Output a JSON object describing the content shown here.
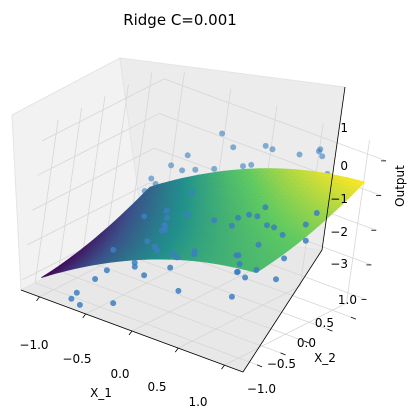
{
  "chart_data": {
    "type": "scatter",
    "title": "Ridge C=0.001",
    "xlabel": "X_1",
    "ylabel": "X_2",
    "zlabel": "Output",
    "xlim": [
      -1.2,
      1.2
    ],
    "ylim": [
      -1.3,
      1.3
    ],
    "zlim": [
      -3.3,
      1.4
    ],
    "xticks": [
      "−1.0",
      "−0.5",
      "0.0",
      "0.5",
      "1.0"
    ],
    "yticks": [
      "−1.0",
      "−0.5",
      "0.0",
      "0.5",
      "1.0"
    ],
    "zticks": [
      "−3",
      "−2",
      "−1",
      "0",
      "1"
    ],
    "surface": {
      "model": "ridge",
      "colormap": "viridis"
    },
    "scatter_color": "#3b7fbf",
    "pane_color": "#f2f2f2",
    "grid": true
  }
}
